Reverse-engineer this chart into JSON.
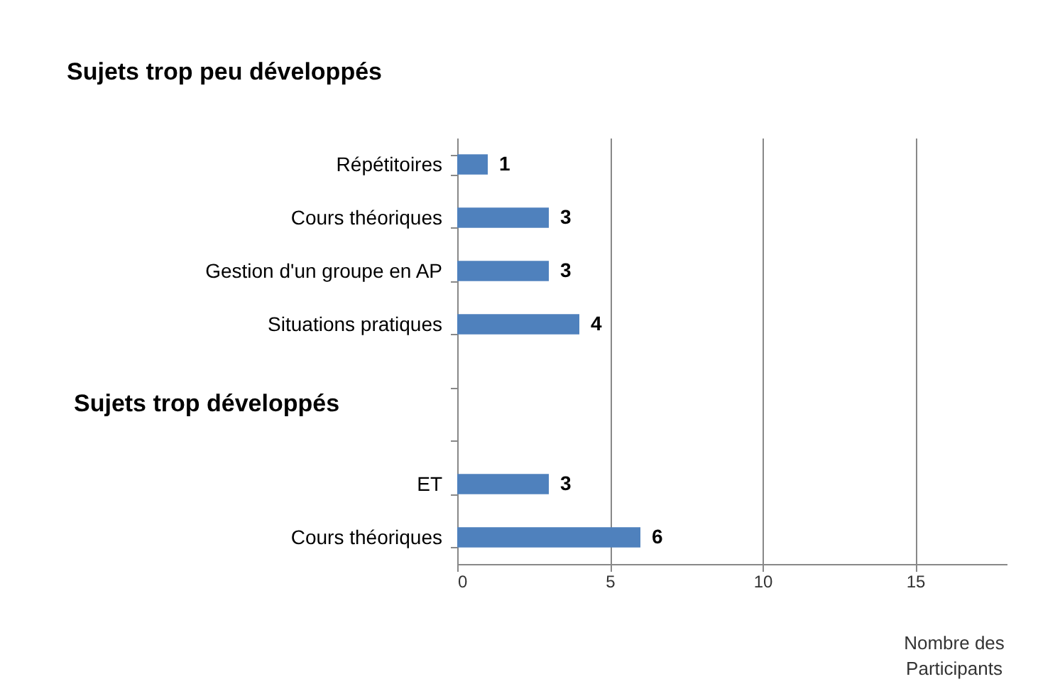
{
  "chart_data": {
    "type": "bar",
    "orientation": "horizontal",
    "title": "Sujets trop peu développés",
    "categories": [
      "Répétitoires",
      "Cours théoriques",
      "Gestion d'un groupe en AP",
      "Situations pratiques",
      null,
      null,
      "ET",
      "Cours théoriques"
    ],
    "values": [
      1,
      3,
      3,
      4,
      null,
      null,
      3,
      6
    ],
    "color": "#4f81bd",
    "data_labels": true,
    "xlim": [
      0,
      18
    ],
    "xticks": [
      0,
      5,
      10,
      15
    ],
    "grid": "x",
    "xlabel": "Nombre des Participants",
    "annotations": [
      "Sujets trop développés"
    ]
  }
}
